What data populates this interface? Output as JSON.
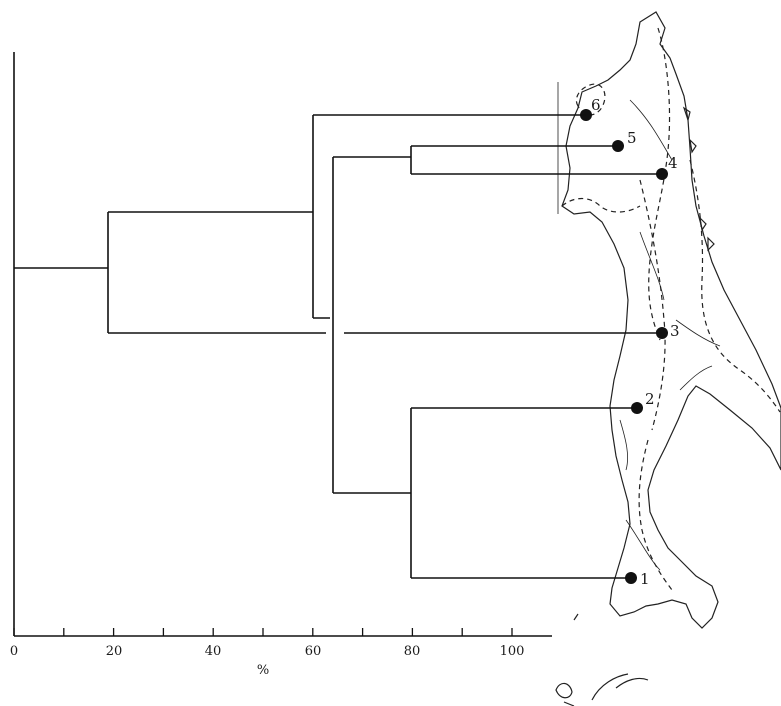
{
  "axis": {
    "ticks": [
      "0",
      "20",
      "40",
      "60",
      "80",
      "100"
    ],
    "unit_label": "%"
  },
  "sites": [
    {
      "number": "1"
    },
    {
      "number": "2"
    },
    {
      "number": "3"
    },
    {
      "number": "4"
    },
    {
      "number": "5"
    },
    {
      "number": "6"
    }
  ],
  "colors": {
    "ink": "#111111",
    "paper": "#ffffff"
  }
}
